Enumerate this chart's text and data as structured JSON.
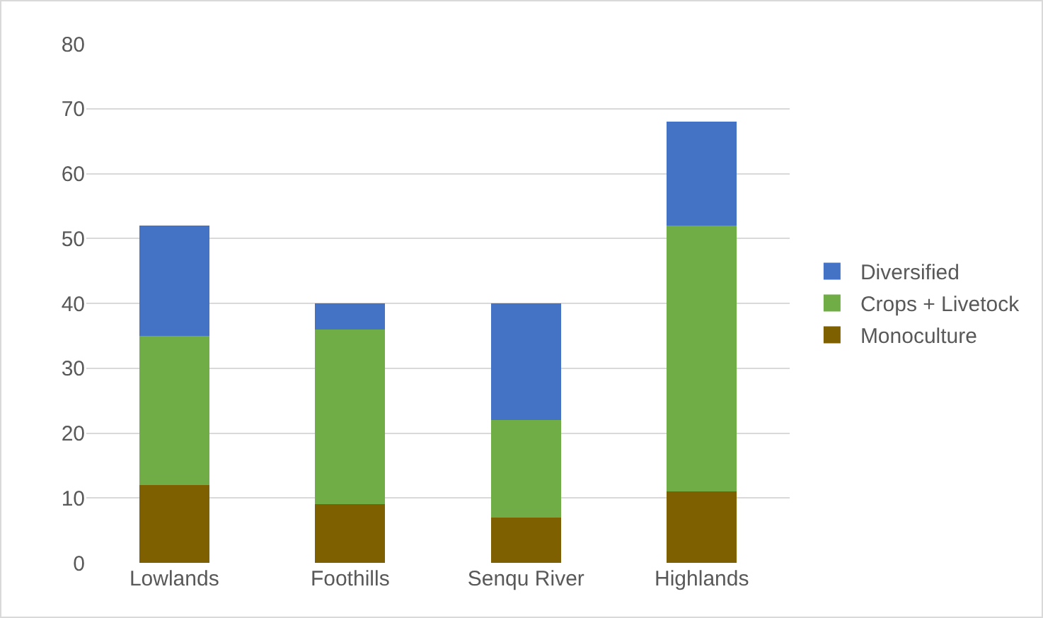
{
  "chart_data": {
    "type": "bar",
    "stacked": true,
    "categories": [
      "Lowlands",
      "Foothills",
      "Senqu River",
      "Highlands"
    ],
    "series": [
      {
        "name": "Monoculture",
        "color": "#7f6000",
        "values": [
          12,
          9,
          7,
          11
        ]
      },
      {
        "name": "Crops + Livetock",
        "color": "#70ad47",
        "values": [
          23,
          27,
          15,
          41
        ]
      },
      {
        "name": "Diversified",
        "color": "#4472c4",
        "values": [
          17,
          4,
          18,
          16
        ]
      }
    ],
    "ylim": [
      0,
      80
    ],
    "yticks": [
      0,
      10,
      20,
      30,
      40,
      50,
      60,
      70,
      80
    ],
    "grid": "y",
    "legend": "right"
  }
}
